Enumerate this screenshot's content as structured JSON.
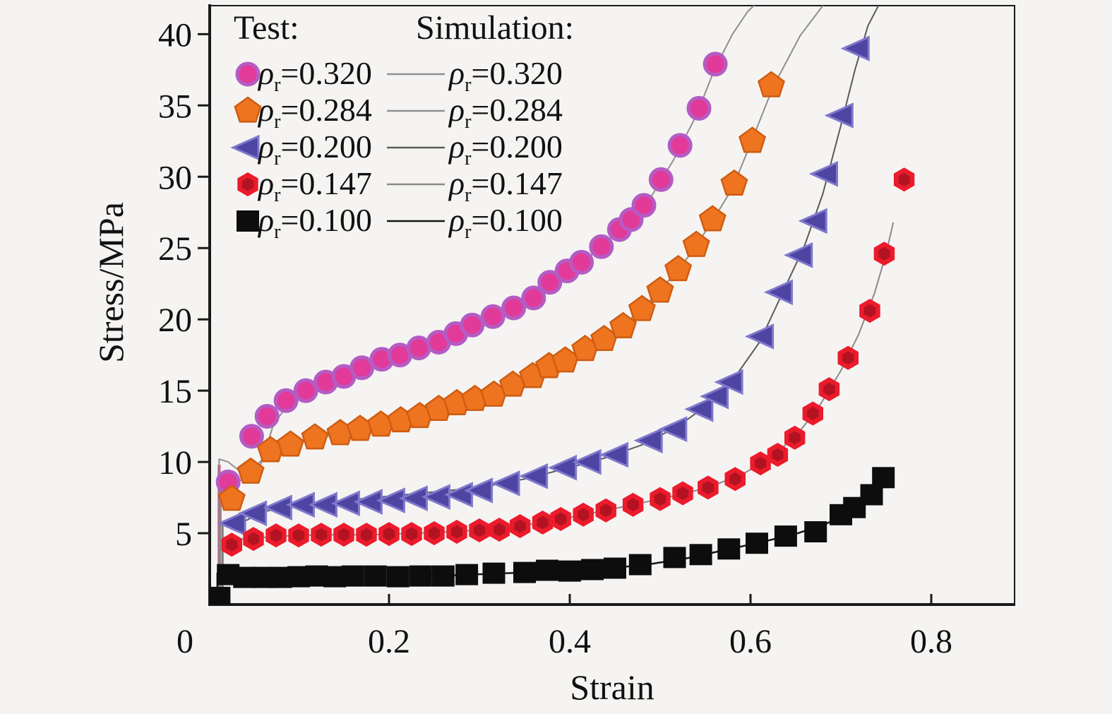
{
  "figure": {
    "background": "#f5f4f2",
    "frame_color": "#1a1a1a"
  },
  "axes": {
    "x": {
      "title": "Strain",
      "min": 0,
      "max": 0.9,
      "ticks": [
        {
          "v": 0,
          "label": "0"
        },
        {
          "v": 0.2,
          "label": "0.2"
        },
        {
          "v": 0.4,
          "label": "0.4"
        },
        {
          "v": 0.6,
          "label": "0.6"
        },
        {
          "v": 0.8,
          "label": "0.8"
        }
      ]
    },
    "y": {
      "title": "Stress/MPa",
      "min": 0,
      "max": 42,
      "ticks": [
        {
          "v": 5,
          "label": "5"
        },
        {
          "v": 10,
          "label": "10"
        },
        {
          "v": 15,
          "label": "15"
        },
        {
          "v": 20,
          "label": "20"
        },
        {
          "v": 25,
          "label": "25"
        },
        {
          "v": 30,
          "label": "30"
        },
        {
          "v": 35,
          "label": "35"
        },
        {
          "v": 40,
          "label": "40"
        }
      ]
    }
  },
  "legend": {
    "test_header": "Test:",
    "sim_header": "Simulation:",
    "rho": "ρ",
    "sub": "r",
    "items": [
      {
        "value": "=0.320"
      },
      {
        "value": "=0.284"
      },
      {
        "value": "=0.200"
      },
      {
        "value": "=0.147"
      },
      {
        "value": "=0.100"
      }
    ]
  },
  "chart_data": {
    "type": "scatter",
    "title": "",
    "xlabel": "Strain",
    "ylabel": "Stress/MPa",
    "xlim": [
      0,
      0.9
    ],
    "ylim": [
      0,
      42
    ],
    "grid": false,
    "legend_position": "top-left",
    "annotations": [
      {
        "name": "elastic-rise-line",
        "color": "#cd3d7c",
        "width": 4,
        "points": [
          [
            0.012,
            0
          ],
          [
            0.012,
            9.8
          ]
        ]
      }
    ],
    "series": [
      {
        "name": "ρr=0.320",
        "relative_density": 0.32,
        "marker": "circle",
        "marker_colors": [
          "#e23a99",
          "#b45cc4"
        ],
        "line_color": "#8f8f8f",
        "line_width": 2,
        "test_points": [
          [
            0.022,
            8.6
          ],
          [
            0.048,
            11.8
          ],
          [
            0.065,
            13.2
          ],
          [
            0.086,
            14.3
          ],
          [
            0.108,
            15.0
          ],
          [
            0.13,
            15.6
          ],
          [
            0.15,
            16.0
          ],
          [
            0.17,
            16.6
          ],
          [
            0.192,
            17.2
          ],
          [
            0.212,
            17.5
          ],
          [
            0.233,
            18.0
          ],
          [
            0.255,
            18.4
          ],
          [
            0.274,
            19.0
          ],
          [
            0.292,
            19.6
          ],
          [
            0.315,
            20.2
          ],
          [
            0.338,
            20.8
          ],
          [
            0.36,
            21.5
          ],
          [
            0.378,
            22.6
          ],
          [
            0.397,
            23.4
          ],
          [
            0.413,
            24.0
          ],
          [
            0.435,
            25.1
          ],
          [
            0.455,
            26.3
          ],
          [
            0.468,
            27.0
          ],
          [
            0.482,
            28.0
          ],
          [
            0.501,
            29.8
          ],
          [
            0.522,
            32.2
          ],
          [
            0.543,
            34.8
          ],
          [
            0.561,
            37.9
          ]
        ],
        "sim_points": [
          [
            0.012,
            0
          ],
          [
            0.012,
            10.2
          ],
          [
            0.022,
            10.0
          ],
          [
            0.038,
            9.2
          ],
          [
            0.052,
            8.7
          ],
          [
            0.062,
            10.6
          ],
          [
            0.072,
            12.6
          ],
          [
            0.09,
            14.2
          ],
          [
            0.12,
            15.2
          ],
          [
            0.16,
            16.3
          ],
          [
            0.2,
            17.2
          ],
          [
            0.24,
            18.0
          ],
          [
            0.28,
            19.1
          ],
          [
            0.32,
            20.3
          ],
          [
            0.36,
            21.6
          ],
          [
            0.4,
            23.4
          ],
          [
            0.43,
            24.8
          ],
          [
            0.46,
            26.5
          ],
          [
            0.49,
            28.6
          ],
          [
            0.515,
            31.2
          ],
          [
            0.54,
            34.3
          ],
          [
            0.56,
            37.5
          ],
          [
            0.58,
            40.0
          ],
          [
            0.597,
            41.6
          ],
          [
            0.612,
            42.5
          ]
        ]
      },
      {
        "name": "ρr=0.284",
        "relative_density": 0.284,
        "marker": "pentagon",
        "marker_colors": [
          "#ee7420",
          "#cf5c12"
        ],
        "line_color": "#8f8f8f",
        "line_width": 2,
        "test_points": [
          [
            0.026,
            7.4
          ],
          [
            0.047,
            9.3
          ],
          [
            0.069,
            10.8
          ],
          [
            0.091,
            11.2
          ],
          [
            0.118,
            11.7
          ],
          [
            0.146,
            12.0
          ],
          [
            0.168,
            12.3
          ],
          [
            0.191,
            12.6
          ],
          [
            0.213,
            12.9
          ],
          [
            0.234,
            13.2
          ],
          [
            0.255,
            13.7
          ],
          [
            0.275,
            14.1
          ],
          [
            0.295,
            14.4
          ],
          [
            0.316,
            14.7
          ],
          [
            0.337,
            15.4
          ],
          [
            0.359,
            16.0
          ],
          [
            0.377,
            16.7
          ],
          [
            0.395,
            17.1
          ],
          [
            0.417,
            17.9
          ],
          [
            0.438,
            18.6
          ],
          [
            0.459,
            19.5
          ],
          [
            0.48,
            20.7
          ],
          [
            0.5,
            22.0
          ],
          [
            0.52,
            23.5
          ],
          [
            0.54,
            25.2
          ],
          [
            0.558,
            27.0
          ],
          [
            0.582,
            29.5
          ],
          [
            0.602,
            32.5
          ],
          [
            0.623,
            36.4
          ]
        ],
        "sim_points": [
          [
            0.014,
            0
          ],
          [
            0.014,
            8.8
          ],
          [
            0.03,
            8.4
          ],
          [
            0.05,
            9.5
          ],
          [
            0.07,
            10.9
          ],
          [
            0.1,
            11.4
          ],
          [
            0.14,
            11.9
          ],
          [
            0.18,
            12.4
          ],
          [
            0.22,
            13.0
          ],
          [
            0.26,
            13.7
          ],
          [
            0.3,
            14.5
          ],
          [
            0.34,
            15.5
          ],
          [
            0.38,
            16.8
          ],
          [
            0.42,
            18.0
          ],
          [
            0.46,
            19.6
          ],
          [
            0.5,
            22.0
          ],
          [
            0.53,
            24.3
          ],
          [
            0.555,
            26.6
          ],
          [
            0.58,
            29.2
          ],
          [
            0.6,
            32.3
          ],
          [
            0.625,
            36.3
          ],
          [
            0.655,
            39.9
          ],
          [
            0.686,
            42.5
          ]
        ]
      },
      {
        "name": "ρr=0.200",
        "relative_density": 0.2,
        "marker": "triangle-left",
        "marker_colors": [
          "#4e45a3",
          "#8078cc"
        ],
        "line_color": "#5a5a5a",
        "line_width": 2,
        "test_points": [
          [
            0.029,
            5.7
          ],
          [
            0.052,
            6.4
          ],
          [
            0.08,
            6.8
          ],
          [
            0.105,
            7.0
          ],
          [
            0.13,
            7.0
          ],
          [
            0.155,
            7.1
          ],
          [
            0.18,
            7.2
          ],
          [
            0.205,
            7.3
          ],
          [
            0.23,
            7.45
          ],
          [
            0.255,
            7.55
          ],
          [
            0.28,
            7.7
          ],
          [
            0.302,
            8.0
          ],
          [
            0.332,
            8.5
          ],
          [
            0.363,
            9.0
          ],
          [
            0.395,
            9.6
          ],
          [
            0.422,
            10.0
          ],
          [
            0.452,
            10.5
          ],
          [
            0.49,
            11.5
          ],
          [
            0.517,
            12.3
          ],
          [
            0.546,
            13.7
          ],
          [
            0.563,
            14.6
          ],
          [
            0.579,
            15.6
          ],
          [
            0.613,
            18.8
          ],
          [
            0.634,
            21.9
          ],
          [
            0.656,
            24.5
          ],
          [
            0.672,
            26.9
          ],
          [
            0.684,
            30.2
          ],
          [
            0.701,
            34.3
          ],
          [
            0.719,
            39.0
          ]
        ],
        "sim_points": [
          [
            0.016,
            0
          ],
          [
            0.016,
            5.6
          ],
          [
            0.03,
            5.5
          ],
          [
            0.06,
            6.5
          ],
          [
            0.1,
            7.0
          ],
          [
            0.15,
            7.3
          ],
          [
            0.2,
            7.6
          ],
          [
            0.25,
            7.9
          ],
          [
            0.3,
            8.2
          ],
          [
            0.35,
            8.8
          ],
          [
            0.4,
            9.6
          ],
          [
            0.44,
            10.3
          ],
          [
            0.48,
            11.2
          ],
          [
            0.52,
            12.5
          ],
          [
            0.55,
            13.9
          ],
          [
            0.58,
            15.7
          ],
          [
            0.61,
            18.4
          ],
          [
            0.635,
            21.8
          ],
          [
            0.66,
            25.2
          ],
          [
            0.68,
            28.8
          ],
          [
            0.7,
            33.6
          ],
          [
            0.716,
            37.6
          ],
          [
            0.73,
            40.6
          ],
          [
            0.744,
            42.3
          ]
        ]
      },
      {
        "name": "ρr=0.147",
        "relative_density": 0.147,
        "marker": "hexagon",
        "marker_colors": [
          "#ec1b2c",
          "#b31321"
        ],
        "line_color": "#8a8a8a",
        "line_width": 2,
        "test_points": [
          [
            0.026,
            4.2
          ],
          [
            0.05,
            4.6
          ],
          [
            0.075,
            4.85
          ],
          [
            0.1,
            4.85
          ],
          [
            0.125,
            4.9
          ],
          [
            0.15,
            4.9
          ],
          [
            0.175,
            4.9
          ],
          [
            0.2,
            4.95
          ],
          [
            0.225,
            4.95
          ],
          [
            0.25,
            5.0
          ],
          [
            0.275,
            5.1
          ],
          [
            0.3,
            5.2
          ],
          [
            0.322,
            5.25
          ],
          [
            0.345,
            5.5
          ],
          [
            0.37,
            5.75
          ],
          [
            0.39,
            6.0
          ],
          [
            0.415,
            6.3
          ],
          [
            0.44,
            6.6
          ],
          [
            0.47,
            7.0
          ],
          [
            0.5,
            7.4
          ],
          [
            0.525,
            7.8
          ],
          [
            0.553,
            8.2
          ],
          [
            0.583,
            8.8
          ],
          [
            0.611,
            9.9
          ],
          [
            0.63,
            10.5
          ],
          [
            0.649,
            11.7
          ],
          [
            0.669,
            13.4
          ],
          [
            0.687,
            15.1
          ],
          [
            0.708,
            17.3
          ],
          [
            0.732,
            20.6
          ],
          [
            0.748,
            24.6
          ],
          [
            0.77,
            29.8
          ]
        ],
        "sim_points": [
          [
            0.013,
            0
          ],
          [
            0.013,
            4.4
          ],
          [
            0.04,
            4.6
          ],
          [
            0.08,
            4.8
          ],
          [
            0.13,
            4.9
          ],
          [
            0.18,
            4.9
          ],
          [
            0.23,
            5.0
          ],
          [
            0.28,
            5.15
          ],
          [
            0.32,
            5.3
          ],
          [
            0.37,
            5.75
          ],
          [
            0.42,
            6.35
          ],
          [
            0.47,
            7.0
          ],
          [
            0.51,
            7.55
          ],
          [
            0.55,
            8.15
          ],
          [
            0.59,
            9.1
          ],
          [
            0.62,
            10.2
          ],
          [
            0.65,
            11.8
          ],
          [
            0.675,
            13.8
          ],
          [
            0.7,
            16.4
          ],
          [
            0.72,
            19.0
          ],
          [
            0.737,
            21.8
          ],
          [
            0.75,
            24.6
          ],
          [
            0.758,
            26.8
          ]
        ]
      },
      {
        "name": "ρr=0.100",
        "relative_density": 0.1,
        "marker": "square",
        "marker_colors": [
          "#0d0d0d",
          "#0d0d0d"
        ],
        "line_color": "#161616",
        "line_width": 2.5,
        "test_points": [
          [
            0.012,
            0.5
          ],
          [
            0.022,
            2.1
          ],
          [
            0.04,
            1.9
          ],
          [
            0.06,
            1.9
          ],
          [
            0.08,
            1.9
          ],
          [
            0.1,
            1.95
          ],
          [
            0.12,
            2.0
          ],
          [
            0.14,
            1.95
          ],
          [
            0.16,
            2.0
          ],
          [
            0.185,
            2.0
          ],
          [
            0.21,
            1.95
          ],
          [
            0.235,
            2.0
          ],
          [
            0.26,
            2.0
          ],
          [
            0.286,
            2.1
          ],
          [
            0.316,
            2.2
          ],
          [
            0.35,
            2.25
          ],
          [
            0.375,
            2.4
          ],
          [
            0.4,
            2.35
          ],
          [
            0.425,
            2.45
          ],
          [
            0.45,
            2.55
          ],
          [
            0.478,
            2.8
          ],
          [
            0.516,
            3.3
          ],
          [
            0.545,
            3.5
          ],
          [
            0.576,
            3.9
          ],
          [
            0.607,
            4.3
          ],
          [
            0.639,
            4.8
          ],
          [
            0.672,
            5.1
          ],
          [
            0.7,
            6.3
          ],
          [
            0.715,
            6.8
          ],
          [
            0.734,
            7.7
          ],
          [
            0.747,
            8.9
          ]
        ],
        "sim_points": [
          [
            0.01,
            0
          ],
          [
            0.01,
            2.2
          ],
          [
            0.04,
            1.9
          ],
          [
            0.09,
            1.95
          ],
          [
            0.15,
            2.0
          ],
          [
            0.21,
            2.0
          ],
          [
            0.27,
            2.05
          ],
          [
            0.33,
            2.2
          ],
          [
            0.39,
            2.35
          ],
          [
            0.44,
            2.5
          ],
          [
            0.49,
            2.85
          ],
          [
            0.53,
            3.25
          ],
          [
            0.57,
            3.8
          ],
          [
            0.61,
            4.35
          ],
          [
            0.65,
            4.95
          ],
          [
            0.685,
            5.7
          ],
          [
            0.71,
            6.6
          ],
          [
            0.73,
            7.6
          ],
          [
            0.75,
            9.2
          ]
        ]
      }
    ]
  }
}
